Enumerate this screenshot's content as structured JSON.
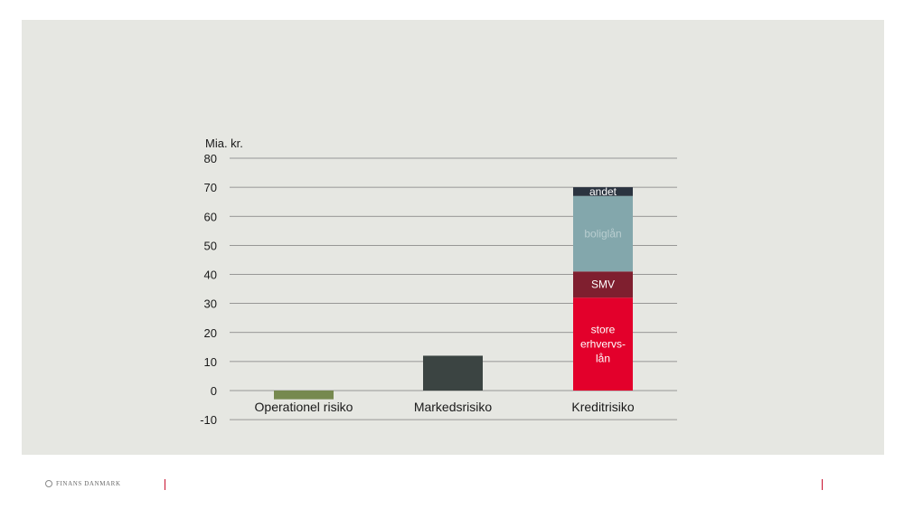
{
  "chart_data": {
    "type": "bar",
    "stacked": true,
    "ylabel": "Mia. kr.",
    "ylim": [
      -10,
      80
    ],
    "yticks": [
      -10,
      0,
      10,
      20,
      30,
      40,
      50,
      60,
      70,
      80
    ],
    "grid": true,
    "categories": [
      "Operationel risiko",
      "Markedsrisiko",
      "Kreditrisiko"
    ],
    "series": [
      {
        "category": "Operationel risiko",
        "value": -3,
        "color": "#76894f",
        "label": ""
      },
      {
        "category": "Markedsrisiko",
        "value": 12,
        "color": "#3b4442",
        "label": ""
      },
      {
        "category": "Kreditrisiko",
        "value": 32,
        "color": "#e3002b",
        "label": "store erhvervs-lån",
        "label_lines": [
          "store",
          "erhvervs-",
          "lån"
        ]
      },
      {
        "category": "Kreditrisiko",
        "value": 9,
        "color": "#7f1f2f",
        "label": "SMV",
        "label_lines": [
          "SMV"
        ]
      },
      {
        "category": "Kreditrisiko",
        "value": 26,
        "color": "#83a7ac",
        "label": "boliglån",
        "label_lines": [
          "boliglån"
        ]
      },
      {
        "category": "Kreditrisiko",
        "value": 3,
        "color": "#2b3440",
        "label": "andet",
        "label_lines": [
          "andet"
        ]
      }
    ]
  },
  "footer": {
    "logo_text": "FINANS DANMARK",
    "accent_color": "#c8102e"
  }
}
